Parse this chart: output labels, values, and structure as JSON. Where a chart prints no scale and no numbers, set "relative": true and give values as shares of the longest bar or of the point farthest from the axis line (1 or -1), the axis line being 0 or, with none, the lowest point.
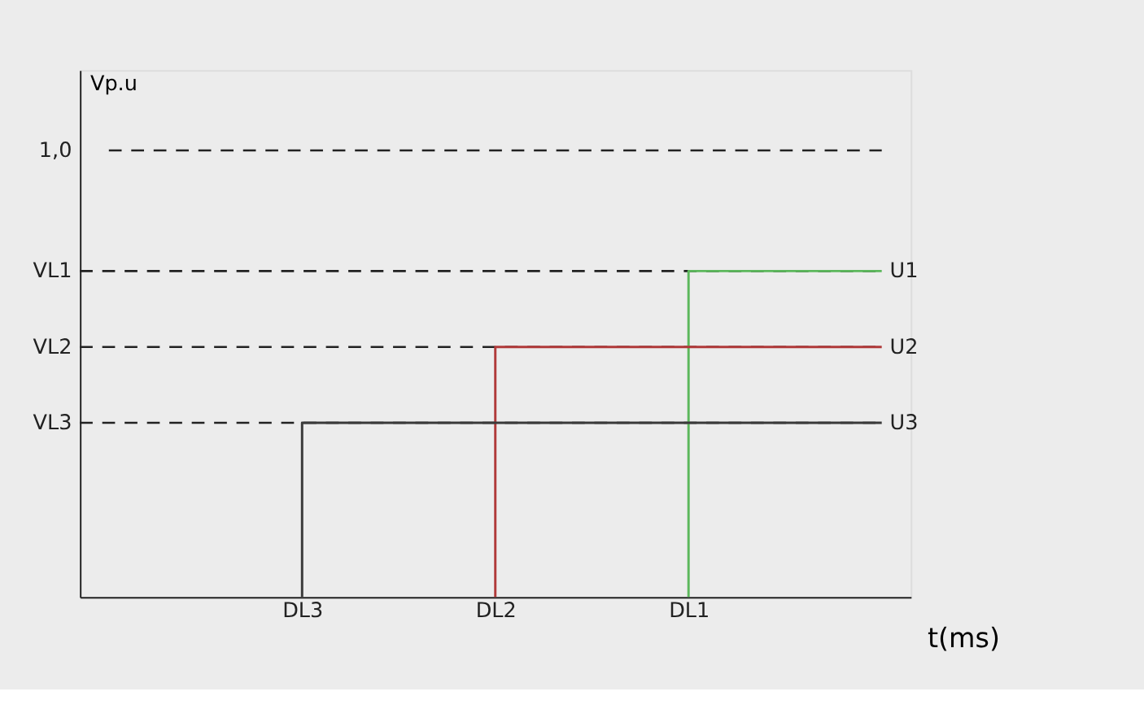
{
  "chart_data": {
    "type": "step",
    "xlabel": "t(ms)",
    "ylabel": "Vp.u",
    "relative": true,
    "categories": [
      null,
      "DL3",
      "DL2",
      "DL1",
      null
    ],
    "ref_lines": [
      {
        "axis": "y",
        "value": 0.73,
        "label": "VL1",
        "line_style": "dashed",
        "color": "#222222"
      },
      {
        "axis": "y",
        "value": 0.56,
        "label": "VL2",
        "line_style": "dashed",
        "color": "#222222"
      },
      {
        "axis": "y",
        "value": 0.39,
        "label": "VL3",
        "line_style": "dashed",
        "color": "#222222"
      }
    ],
    "series": [
      {
        "name": "1,0",
        "type": "line",
        "line_style": "dashed",
        "color": "#222222",
        "values": [
          1.0,
          1.0,
          1.0,
          1.0,
          1.0
        ]
      },
      {
        "name": "U1",
        "color": "#5cb85c",
        "values": [
          null,
          null,
          null,
          0,
          0.73
        ]
      },
      {
        "name": "U2",
        "color": "#b03a3a",
        "values": [
          null,
          null,
          0,
          0.56,
          0.56
        ]
      },
      {
        "name": "U3",
        "color": "#3a3a3a",
        "values": [
          null,
          0,
          0.39,
          0.39,
          0.39
        ]
      }
    ],
    "line_style": "solid"
  }
}
